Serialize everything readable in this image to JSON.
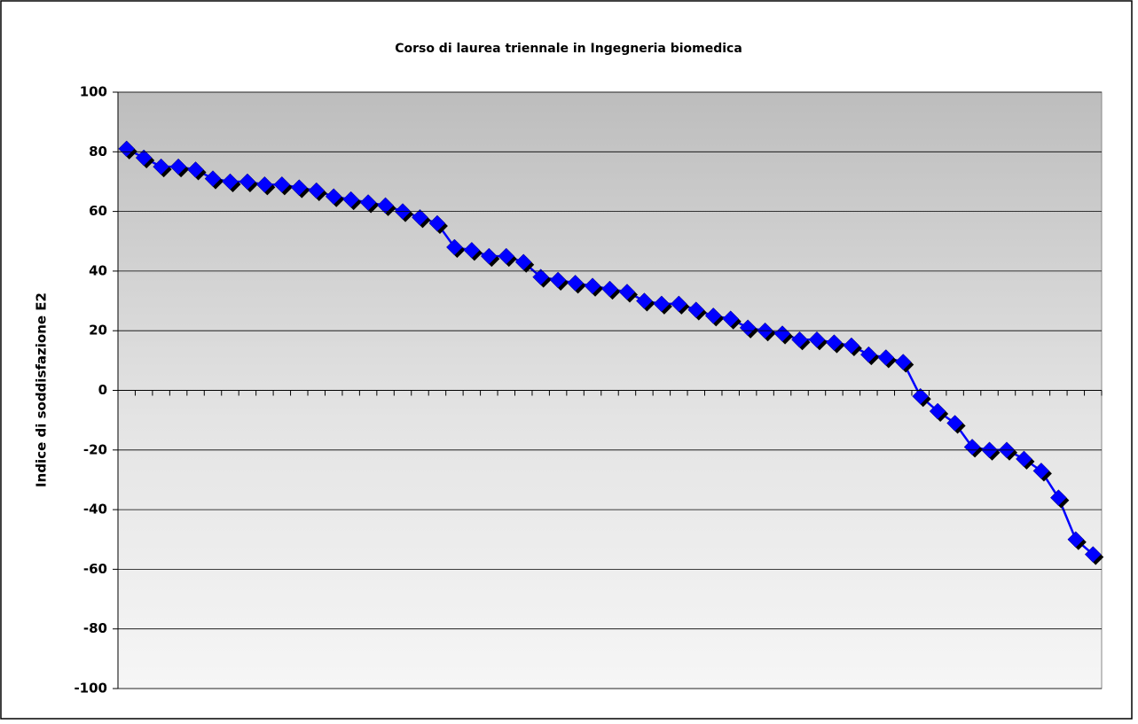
{
  "chart_data": {
    "type": "line",
    "title": "Corso di laurea triennale in Ingegneria biomedica",
    "y_label": "Indice di soddisfazione E2",
    "categories": [
      null,
      null,
      null,
      null,
      null,
      null,
      null,
      null,
      null,
      null,
      null,
      null,
      null,
      null,
      null,
      null,
      null,
      null,
      null,
      null,
      null,
      null,
      null,
      null,
      null,
      null,
      null,
      null,
      null,
      null,
      null,
      null,
      null,
      null,
      null,
      null,
      null,
      null,
      null,
      null,
      null,
      null,
      null,
      null,
      null,
      null,
      null,
      null,
      null,
      null,
      null,
      null,
      null,
      null,
      null,
      null,
      null
    ],
    "series": [
      {
        "name": "Indice di soddisfazione E2",
        "color": "#0000ff",
        "values": [
          81,
          78,
          75,
          75,
          74,
          71,
          70,
          70,
          69,
          69,
          68,
          67,
          65,
          64,
          63,
          62,
          60,
          58,
          56,
          48,
          47,
          45,
          45,
          43,
          38,
          37,
          36,
          35,
          34,
          33,
          30,
          29,
          29,
          27,
          25,
          24,
          21,
          20,
          19,
          17,
          17,
          16,
          15,
          12,
          11,
          9.5,
          -2,
          -7,
          -11,
          -19,
          -20,
          -20,
          -23,
          -27,
          -36,
          -50,
          -55
        ]
      }
    ],
    "ylim": [
      -100,
      100
    ],
    "yticks": [
      -100,
      -80,
      -60,
      -40,
      -20,
      0,
      20,
      40,
      60,
      80,
      100
    ],
    "grid": true
  }
}
